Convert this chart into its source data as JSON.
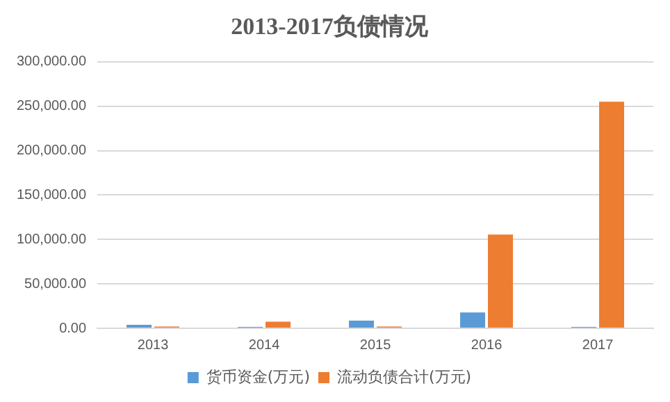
{
  "chart_data": {
    "type": "bar",
    "title": "2013-2017负债情况",
    "categories": [
      "2013",
      "2014",
      "2015",
      "2016",
      "2017"
    ],
    "series": [
      {
        "name": "货币资金(万元)",
        "color": "#5b9bd5",
        "values": [
          4000,
          1500,
          8600,
          17800,
          1500
        ]
      },
      {
        "name": "流动负债合计(万元)",
        "color": "#ed7d31",
        "values": [
          2000,
          7500,
          2000,
          105500,
          255000
        ]
      }
    ],
    "ylim": [
      0,
      300000
    ],
    "yticks": [
      {
        "value": 0,
        "label": "0.00"
      },
      {
        "value": 50000,
        "label": "50,000.00"
      },
      {
        "value": 100000,
        "label": "100,000.00"
      },
      {
        "value": 150000,
        "label": "150,000.00"
      },
      {
        "value": 200000,
        "label": "200,000.00"
      },
      {
        "value": 250000,
        "label": "250,000.00"
      },
      {
        "value": 300000,
        "label": "300,000.00"
      }
    ],
    "grid": "y",
    "legend": "bottom"
  }
}
